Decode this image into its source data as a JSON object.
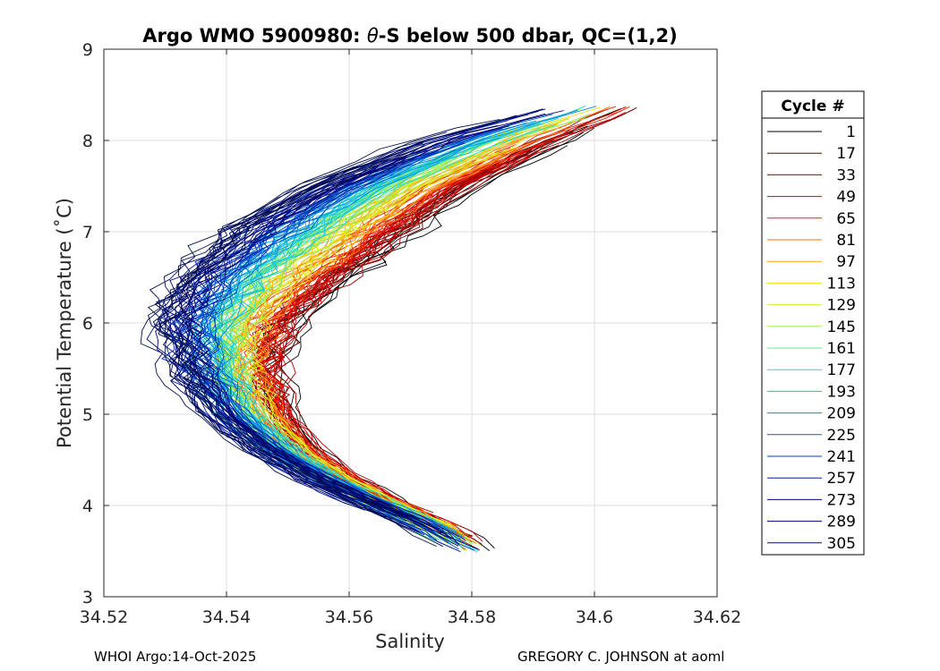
{
  "chart_data": {
    "type": "line",
    "title_prefix": "Argo WMO 5900980: ",
    "title_theta": "θ",
    "title_suffix": "-S below 500 dbar,  QC=(1,2)",
    "xlabel": "Salinity",
    "ylabel": "Potential Temperature (˚C)",
    "xlim": [
      34.52,
      34.62
    ],
    "ylim": [
      3,
      9
    ],
    "xticks": [
      "34.52",
      "34.54",
      "34.56",
      "34.58",
      "34.6",
      "34.62"
    ],
    "xtick_values": [
      34.52,
      34.54,
      34.56,
      34.58,
      34.6,
      34.62
    ],
    "yticks": [
      "3",
      "4",
      "5",
      "6",
      "7",
      "8",
      "9"
    ],
    "ytick_values": [
      3,
      4,
      5,
      6,
      7,
      8,
      9
    ],
    "grid": true,
    "legend": {
      "title": "Cycle #",
      "placement": "right-outside",
      "entries": [
        "1",
        "17",
        "33",
        "49",
        "65",
        "81",
        "97",
        "113",
        "129",
        "145",
        "161",
        "177",
        "193",
        "209",
        "225",
        "241",
        "257",
        "273",
        "289",
        "305"
      ],
      "colors": [
        "#000000",
        "#7a0000",
        "#b00000",
        "#d80000",
        "#ee2200",
        "#ff7000",
        "#ffa800",
        "#f5e000",
        "#d0f030",
        "#9bf060",
        "#60e890",
        "#30d8c0",
        "#10c0e0",
        "#0090e0",
        "#0060d0",
        "#0040c0",
        "#0020a0",
        "#000080",
        "#000060",
        "#001050"
      ]
    },
    "series_model": {
      "description": "Representative theta-S profiles per cycle group, salinity vs potential temperature",
      "theta": [
        3.5,
        3.8,
        4.0,
        4.3,
        4.6,
        5.0,
        5.5,
        6.0,
        6.5,
        7.0,
        7.5,
        8.0,
        8.3
      ],
      "salinity_early": [
        34.582,
        34.575,
        34.568,
        34.56,
        34.554,
        34.55,
        34.548,
        34.551,
        34.56,
        34.57,
        34.58,
        34.595,
        34.605
      ],
      "salinity_late": [
        34.578,
        34.57,
        34.563,
        34.553,
        34.545,
        34.537,
        34.532,
        34.529,
        34.532,
        34.54,
        34.553,
        34.572,
        34.59
      ]
    }
  },
  "footer": {
    "left": "WHOI Argo:14-Oct-2025",
    "right": "GREGORY C. JOHNSON at aoml"
  }
}
